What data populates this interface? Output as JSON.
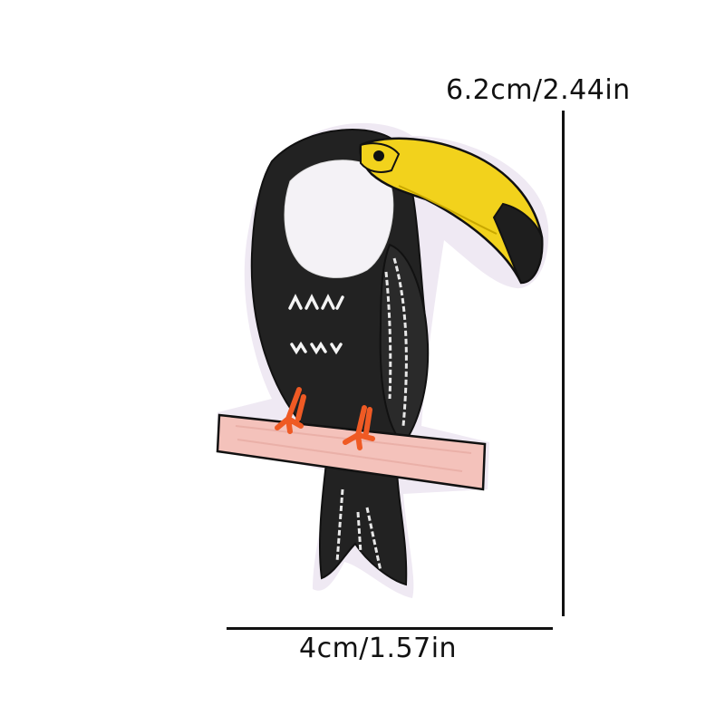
{
  "dimensions": {
    "height_label": "6.2cm/2.44in",
    "width_label": "4cm/1.57in"
  },
  "product": {
    "subject": "toucan-embroidered-patch",
    "chest_stitch_text_line1": "ΛΛΙΛ",
    "chest_stitch_text_line2": "ᴠᴠᴠ"
  },
  "colors": {
    "background": "#ffffff",
    "body": "#222222",
    "belly": "#f4f2f6",
    "beak": "#f2d21c",
    "beak_tip": "#1e1e1e",
    "branch": "#f4c2bb",
    "feet": "#ef5a24",
    "outline": "#111111",
    "patch_edge": "#efe9f3"
  }
}
